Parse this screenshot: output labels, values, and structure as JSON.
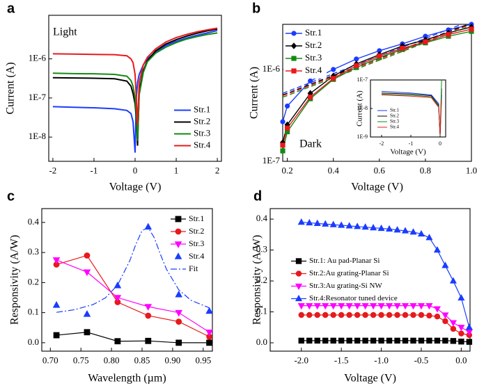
{
  "chart_data": [
    {
      "type": "line",
      "panel": "a",
      "annotation": "Light",
      "xlabel": "Voltage (V)",
      "ylabel": "Current (A)",
      "log_y": true,
      "xlim": [
        -2.1,
        2.1
      ],
      "ylim": [
        2.4e-09,
        1.3e-05
      ],
      "xticks": [
        -2,
        -1,
        0,
        1,
        2
      ],
      "yticks": [
        {
          "value": 1e-08,
          "label": "1E-8"
        },
        {
          "value": 1e-07,
          "label": "1E-7"
        },
        {
          "value": 1e-06,
          "label": "1E-6"
        }
      ],
      "legend_loc": "lower right",
      "x": [
        -2,
        -1.5,
        -1,
        -0.5,
        -0.2,
        -0.1,
        -0.05,
        0,
        0.03,
        0.06,
        0.1,
        0.2,
        0.3,
        0.5,
        0.75,
        1,
        1.25,
        1.5,
        1.75,
        2
      ],
      "series": [
        {
          "name": "Str.1",
          "color": "#1a3cff",
          "line": "solid",
          "marker": "none",
          "values": [
            6e-08,
            5.8e-08,
            5.6e-08,
            5.3e-08,
            4.8e-08,
            4e-08,
            2.5e-08,
            4e-09,
            1e-07,
            2.5e-07,
            4e-07,
            7e-07,
            1e-06,
            1.5e-06,
            2.2e-06,
            2.8e-06,
            3.4e-06,
            4e-06,
            4.6e-06,
            5.3e-06
          ]
        },
        {
          "name": "Str.2",
          "color": "#000000",
          "line": "solid",
          "marker": "none",
          "values": [
            3.3e-07,
            3.25e-07,
            3.2e-07,
            3.1e-07,
            2.7e-07,
            2e-07,
            1.3e-07,
            7e-08,
            3e-08,
            6e-09,
            1.5e-07,
            5e-07,
            9e-07,
            1.6e-06,
            2.4e-06,
            3.1e-06,
            3.8e-06,
            4.5e-06,
            5.2e-06,
            5.8e-06
          ]
        },
        {
          "name": "Str.3",
          "color": "#138a13",
          "line": "solid",
          "marker": "none",
          "values": [
            4.3e-07,
            4.2e-07,
            4.15e-07,
            4e-07,
            3.6e-07,
            2.8e-07,
            2e-07,
            1e-07,
            4e-08,
            8e-09,
            1.2e-07,
            4.5e-07,
            8.5e-07,
            1.4e-06,
            2e-06,
            2.6e-06,
            3.2e-06,
            3.7e-06,
            4.2e-06,
            4.6e-06
          ]
        },
        {
          "name": "Str.4",
          "color": "#e8191c",
          "line": "solid",
          "marker": "none",
          "values": [
            1.35e-06,
            1.33e-06,
            1.3e-06,
            1.28e-06,
            1.2e-06,
            1e-06,
            8e-07,
            4e-07,
            1e-07,
            2e-08,
            2.5e-07,
            7e-07,
            1.1e-06,
            1.8e-06,
            2.7e-06,
            3.5e-06,
            4.2e-06,
            4.9e-06,
            5.5e-06,
            6.1e-06
          ]
        }
      ]
    },
    {
      "type": "line",
      "panel": "b",
      "annotation": "Dark",
      "xlabel": "Voltage (V)",
      "ylabel": "Current (A)",
      "log_y": true,
      "xlim": [
        0.18,
        1.0
      ],
      "ylim": [
        1e-07,
        3.1e-06
      ],
      "xticks": [
        0.2,
        0.4,
        0.6,
        0.8,
        {
          "value": 1.0,
          "label": "1.0"
        }
      ],
      "yticks": [
        {
          "value": 1e-07,
          "label": "1E-7"
        },
        {
          "value": 1e-06,
          "label": "1E-6"
        }
      ],
      "legend_loc": "upper left",
      "x": [
        0.18,
        0.2,
        0.3,
        0.4,
        0.5,
        0.6,
        0.7,
        0.8,
        0.9,
        1.0
      ],
      "series": [
        {
          "name": "Str.1",
          "color": "#1a3cff",
          "line": "solid",
          "marker": "circle",
          "values": [
            2.7e-07,
            4e-07,
            7.5e-07,
            1e-06,
            1.3e-06,
            1.6e-06,
            1.9e-06,
            2.3e-06,
            2.7e-06,
            3.1e-06
          ],
          "fit": [
            5.5e-07,
            5.75e-07,
            7.2e-07,
            9e-07,
            1.12e-06,
            1.4e-06,
            1.75e-06,
            2.18e-06,
            2.73e-06,
            3.4e-06
          ]
        },
        {
          "name": "Str.2",
          "color": "#000000",
          "line": "solid",
          "marker": "diamond",
          "values": [
            1.6e-07,
            2.5e-07,
            5.5e-07,
            8.5e-07,
            1.15e-06,
            1.45e-06,
            1.8e-06,
            2.1e-06,
            2.5e-06,
            2.9e-06
          ],
          "fit": [
            5.3e-07,
            5.5e-07,
            6.9e-07,
            8.6e-07,
            1.07e-06,
            1.33e-06,
            1.66e-06,
            2.07e-06,
            2.58e-06,
            3.2e-06
          ]
        },
        {
          "name": "Str.3",
          "color": "#138a13",
          "line": "solid",
          "marker": "square",
          "values": [
            1.3e-07,
            2.1e-07,
            4.8e-07,
            7.8e-07,
            1.05e-06,
            1.35e-06,
            1.65e-06,
            1.95e-06,
            2.3e-06,
            2.6e-06
          ],
          "fit": [
            5e-07,
            5.2e-07,
            6.5e-07,
            8.1e-07,
            1.01e-06,
            1.26e-06,
            1.57e-06,
            1.96e-06,
            2.44e-06,
            3e-06
          ]
        },
        {
          "name": "Str.4",
          "color": "#e8191c",
          "line": "solid",
          "marker": "square",
          "values": [
            1.5e-07,
            2.3e-07,
            5e-07,
            8e-07,
            1.1e-06,
            1.4e-06,
            1.7e-06,
            2e-06,
            2.4e-06,
            2.75e-06
          ],
          "fit": [
            5.2e-07,
            5.4e-07,
            6.7e-07,
            8.4e-07,
            1.04e-06,
            1.3e-06,
            1.62e-06,
            2.02e-06,
            2.52e-06,
            3.1e-06
          ]
        }
      ]
    },
    {
      "type": "line",
      "xlabel": "Voltage (V)",
      "ylabel": "Current (A)",
      "log_y": true,
      "xlim": [
        -2.38,
        0.19
      ],
      "ylim": [
        1e-09,
        1e-07
      ],
      "xticks": [
        -2,
        -1,
        0
      ],
      "yticks": [
        {
          "value": 1e-09,
          "label": "1E-9"
        },
        {
          "value": 1e-08,
          "label": "1E-8"
        },
        {
          "value": 1e-07,
          "label": "1E-7"
        }
      ],
      "legend_loc": "lower left",
      "x": [
        -2,
        -1,
        -0.3,
        -0.05,
        0,
        0.05
      ],
      "series": [
        {
          "name": "Str.1",
          "color": "#1a3cff",
          "line": "solid",
          "marker": "none",
          "values": [
            4e-08,
            3.5e-08,
            3e-08,
            1.5e-08,
            1.2e-09,
            3e-08
          ]
        },
        {
          "name": "Str.2",
          "color": "#000000",
          "line": "solid",
          "marker": "none",
          "values": [
            3.5e-08,
            3.2e-08,
            2.8e-08,
            1.3e-08,
            1.1e-09,
            5e-08
          ]
        },
        {
          "name": "Str.3",
          "color": "#138a13",
          "line": "solid",
          "marker": "none",
          "values": [
            3.2e-08,
            2.9e-08,
            2.6e-08,
            1.2e-08,
            1.1e-09,
            1e-07
          ]
        },
        {
          "name": "Str.4",
          "color": "#e8191c",
          "line": "solid",
          "marker": "none",
          "values": [
            3e-08,
            2.7e-08,
            2.4e-08,
            1.1e-08,
            1.2e-09,
            2e-08
          ]
        }
      ]
    },
    {
      "type": "line",
      "panel": "c",
      "xlabel": "Wavelength (µm)",
      "ylabel": "Responsivity (A/W)",
      "xlim": [
        0.686,
        0.965
      ],
      "ylim": [
        -0.028,
        0.446
      ],
      "xticks": [
        {
          "value": 0.7,
          "label": "0.70"
        },
        0.75,
        {
          "value": 0.8,
          "label": "0.80"
        },
        0.85,
        {
          "value": 0.9,
          "label": "0.90"
        },
        0.95
      ],
      "yticks": [
        {
          "value": 0,
          "label": "0.0"
        },
        0.1,
        0.2,
        0.3,
        0.4
      ],
      "legend_loc": "upper right",
      "x": [
        0.71,
        0.76,
        0.81,
        0.86,
        0.91,
        0.96
      ],
      "series": [
        {
          "name": "Str.1",
          "color": "#000000",
          "line": "solid",
          "marker": "square",
          "values": [
            0.025,
            0.035,
            0.005,
            0.006,
            0,
            0
          ]
        },
        {
          "name": "Str.2",
          "color": "#e8191c",
          "line": "solid",
          "marker": "circle",
          "values": [
            0.26,
            0.29,
            0.135,
            0.09,
            0.07,
            0.02
          ]
        },
        {
          "name": "Str.3",
          "color": "#ff00ff",
          "line": "solid",
          "marker": "triangle-down",
          "values": [
            0.275,
            0.235,
            0.15,
            0.12,
            0.1,
            0.035
          ]
        },
        {
          "name": "Str.4",
          "color": "#1a3cff",
          "line": "none",
          "marker": "triangle-up",
          "values": [
            0.125,
            0.095,
            0.19,
            0.385,
            0.16,
            0.105
          ]
        },
        {
          "name": "Fit",
          "color": "#1a3cff",
          "line": "dashdot",
          "marker": "none",
          "x": [
            0.71,
            0.74,
            0.77,
            0.79,
            0.81,
            0.83,
            0.84,
            0.85,
            0.86,
            0.87,
            0.88,
            0.89,
            0.91,
            0.93,
            0.96
          ],
          "values": [
            0.101,
            0.11,
            0.127,
            0.149,
            0.192,
            0.273,
            0.328,
            0.373,
            0.383,
            0.349,
            0.294,
            0.244,
            0.176,
            0.141,
            0.116
          ]
        }
      ]
    },
    {
      "type": "line",
      "panel": "d",
      "xlabel": "Voltage (V)",
      "ylabel": "Responsivity (A/W)",
      "xlim": [
        -2.39,
        0.11
      ],
      "ylim": [
        -0.027,
        0.434
      ],
      "xticks": [
        {
          "value": -2,
          "label": "-2.0"
        },
        -1.5,
        {
          "value": -1,
          "label": "-1.0"
        },
        -0.5,
        {
          "value": 0,
          "label": "0.0"
        }
      ],
      "yticks": [
        {
          "value": 0,
          "label": "0.0"
        },
        0.1,
        0.2,
        0.3,
        0.4
      ],
      "legend_loc": "center left",
      "x": [
        -2.0,
        -1.9,
        -1.8,
        -1.7,
        -1.6,
        -1.5,
        -1.4,
        -1.3,
        -1.2,
        -1.1,
        -1.0,
        -0.9,
        -0.8,
        -0.7,
        -0.6,
        -0.5,
        -0.4,
        -0.3,
        -0.2,
        -0.1,
        0.0,
        0.1
      ],
      "series": [
        {
          "name": "Str.1: Au pad-Planar Si",
          "color": "#000000",
          "line": "solid",
          "marker": "square",
          "values": [
            0.007,
            0.007,
            0.007,
            0.007,
            0.007,
            0.007,
            0.007,
            0.007,
            0.007,
            0.007,
            0.007,
            0.007,
            0.007,
            0.007,
            0.007,
            0.007,
            0.007,
            0.007,
            0.007,
            0.006,
            0.004,
            0.003
          ]
        },
        {
          "name": "Str.2:Au grating-Planar Si",
          "color": "#e8191c",
          "line": "solid",
          "marker": "circle",
          "values": [
            0.09,
            0.09,
            0.09,
            0.09,
            0.09,
            0.09,
            0.09,
            0.09,
            0.09,
            0.09,
            0.09,
            0.09,
            0.09,
            0.09,
            0.09,
            0.09,
            0.088,
            0.085,
            0.07,
            0.045,
            0.03,
            0.025
          ]
        },
        {
          "name": "Str.3:Au grating-Si NW",
          "color": "#ff00ff",
          "line": "solid",
          "marker": "triangle-down",
          "values": [
            0.12,
            0.12,
            0.12,
            0.12,
            0.12,
            0.12,
            0.12,
            0.12,
            0.12,
            0.12,
            0.12,
            0.12,
            0.12,
            0.12,
            0.12,
            0.12,
            0.12,
            0.11,
            0.09,
            0.065,
            0.05,
            0.035
          ]
        },
        {
          "name": "Str.4:Resonator tuned device",
          "color": "#1a3cff",
          "line": "solid",
          "marker": "triangle-up",
          "values": [
            0.39,
            0.388,
            0.386,
            0.384,
            0.382,
            0.38,
            0.378,
            0.376,
            0.374,
            0.372,
            0.37,
            0.368,
            0.365,
            0.362,
            0.358,
            0.352,
            0.34,
            0.3,
            0.25,
            0.2,
            0.145,
            0.05
          ]
        }
      ]
    }
  ]
}
